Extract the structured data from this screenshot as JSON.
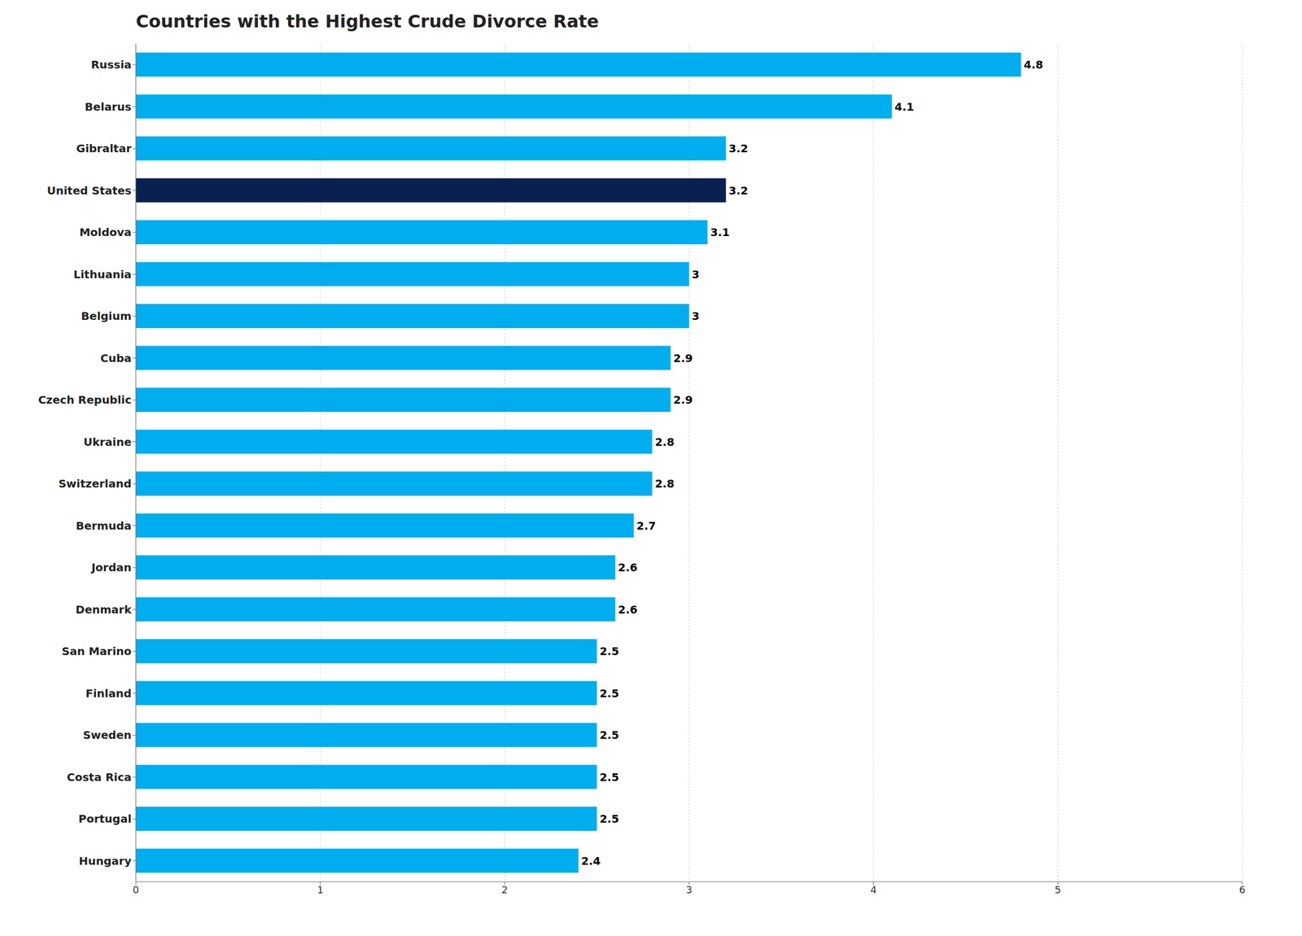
{
  "chart_data": {
    "type": "bar",
    "title": "Countries with the Highest Crude Divorce Rate",
    "orientation": "horizontal",
    "categories": [
      "Russia",
      "Belarus",
      "Gibraltar",
      "United States",
      "Moldova",
      "Lithuania",
      "Belgium",
      "Cuba",
      "Czech Republic",
      "Ukraine",
      "Switzerland",
      "Bermuda",
      "Jordan",
      "Denmark",
      "San Marino",
      "Finland",
      "Sweden",
      "Costa Rica",
      "Portugal",
      "Hungary"
    ],
    "values": [
      4.8,
      4.1,
      3.2,
      3.2,
      3.1,
      3.0,
      3.0,
      2.9,
      2.9,
      2.8,
      2.8,
      2.7,
      2.6,
      2.6,
      2.5,
      2.5,
      2.5,
      2.5,
      2.5,
      2.4
    ],
    "colors": [
      "#00AEEF",
      "#00AEEF",
      "#00AEEF",
      "#0A2051",
      "#00AEEF",
      "#00AEEF",
      "#00AEEF",
      "#00AEEF",
      "#00AEEF",
      "#00AEEF",
      "#00AEEF",
      "#00AEEF",
      "#00AEEF",
      "#00AEEF",
      "#00AEEF",
      "#00AEEF",
      "#00AEEF",
      "#00AEEF",
      "#00AEEF",
      "#00AEEF"
    ],
    "xlim": [
      0,
      6
    ],
    "xticks": [
      0,
      1,
      2,
      3,
      4,
      5,
      6
    ],
    "grid": true,
    "data_labels": true
  }
}
